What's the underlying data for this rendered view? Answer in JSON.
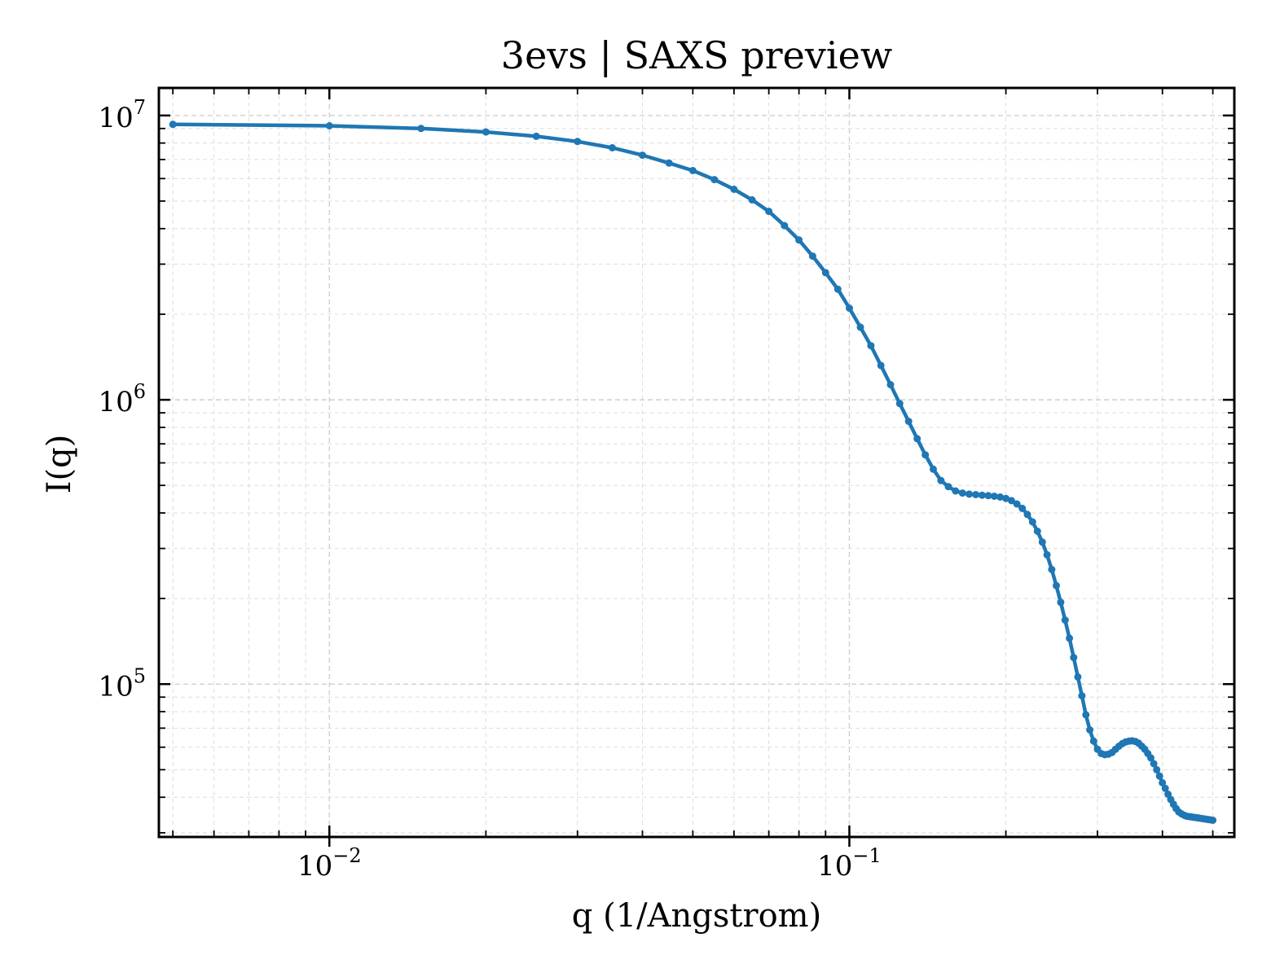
{
  "chart_data": {
    "type": "line",
    "title": "3evs | SAXS preview",
    "xlabel": "q (1/Angstrom)",
    "ylabel": "I(q)",
    "xscale": "log",
    "yscale": "log",
    "xlim": [
      0.0047,
      0.55
    ],
    "ylim": [
      29000,
      12500000
    ],
    "grid": true,
    "legend": "none",
    "colors": {
      "series": "#1f77b4",
      "grid": "#cccccc",
      "axes": "#000000"
    },
    "x_ticks": [
      {
        "value": 0.01,
        "base": "10",
        "exp": "−2"
      },
      {
        "value": 0.1,
        "base": "10",
        "exp": "−1"
      }
    ],
    "y_ticks": [
      {
        "value": 100000,
        "base": "10",
        "exp": "5"
      },
      {
        "value": 1000000,
        "base": "10",
        "exp": "6"
      },
      {
        "value": 10000000,
        "base": "10",
        "exp": "7"
      }
    ],
    "series": [
      {
        "color": "#1f77b4",
        "marker": "circle",
        "x": [
          0.005,
          0.01,
          0.015,
          0.02,
          0.025,
          0.03,
          0.035,
          0.04,
          0.045,
          0.05,
          0.055,
          0.06,
          0.065,
          0.07,
          0.075,
          0.08,
          0.085,
          0.09,
          0.095,
          0.1,
          0.105,
          0.11,
          0.115,
          0.12,
          0.125,
          0.13,
          0.135,
          0.14,
          0.145,
          0.15,
          0.155,
          0.16,
          0.165,
          0.17,
          0.175,
          0.18,
          0.185,
          0.19,
          0.195,
          0.2,
          0.205,
          0.21,
          0.215,
          0.22,
          0.225,
          0.23,
          0.235,
          0.24,
          0.245,
          0.25,
          0.255,
          0.26,
          0.265,
          0.27,
          0.275,
          0.28,
          0.285,
          0.29,
          0.295,
          0.3,
          0.305,
          0.31,
          0.315,
          0.32,
          0.325,
          0.33,
          0.335,
          0.34,
          0.345,
          0.35,
          0.355,
          0.36,
          0.365,
          0.37,
          0.375,
          0.38,
          0.385,
          0.39,
          0.395,
          0.4,
          0.405,
          0.41,
          0.415,
          0.42,
          0.425,
          0.43,
          0.435,
          0.44,
          0.445,
          0.45,
          0.455,
          0.46,
          0.465,
          0.47,
          0.475,
          0.48,
          0.485,
          0.49,
          0.495,
          0.5
        ],
        "y": [
          9300000,
          9200000,
          9000000,
          8750000,
          8450000,
          8100000,
          7700000,
          7250000,
          6800000,
          6400000,
          5950000,
          5500000,
          5050000,
          4600000,
          4100000,
          3650000,
          3200000,
          2800000,
          2450000,
          2100000,
          1800000,
          1550000,
          1320000,
          1130000,
          970000,
          840000,
          730000,
          640000,
          570000,
          520000,
          495000,
          478000,
          470000,
          466000,
          464000,
          462000,
          460000,
          458000,
          455000,
          450000,
          442000,
          430000,
          415000,
          395000,
          372000,
          345000,
          316000,
          285000,
          253000,
          222000,
          194000,
          168000,
          145000,
          124000,
          106000,
          91000,
          78000,
          69000,
          63000,
          59000,
          57000,
          56500,
          56700,
          57500,
          59000,
          60500,
          61800,
          62600,
          63000,
          63200,
          62800,
          62000,
          60500,
          59000,
          57000,
          55000,
          52500,
          50000,
          47500,
          45000,
          43000,
          41000,
          39300,
          37800,
          36500,
          35500,
          35000,
          34600,
          34300,
          34200,
          34100,
          34000,
          33900,
          33800,
          33700,
          33600,
          33500,
          33400,
          33300,
          33200
        ]
      }
    ]
  }
}
